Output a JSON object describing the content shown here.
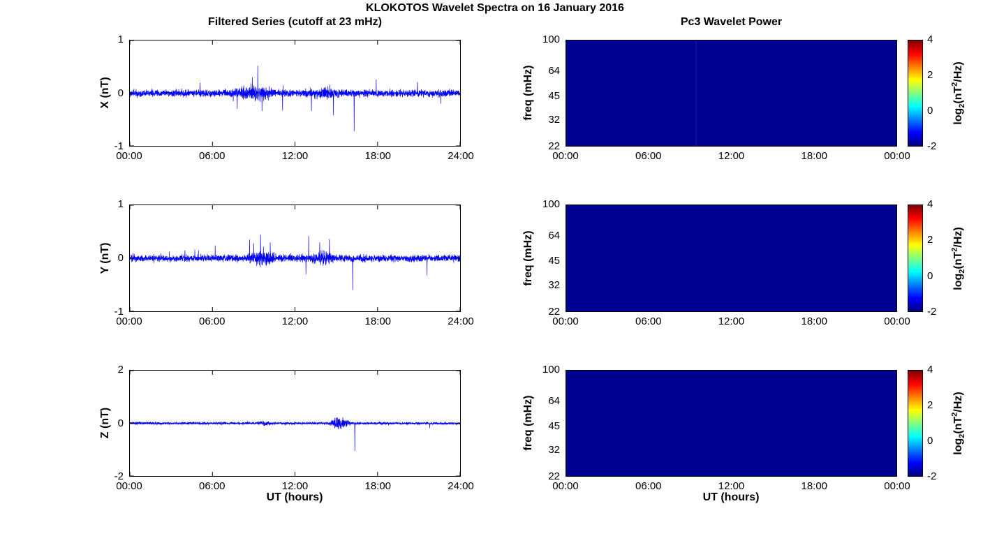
{
  "title": "KLOKOTOS Wavelet Spectra on 16 January 2016",
  "left": {
    "title": "Filtered Series (cutoff at 23 mHz)",
    "xlabel": "UT (hours)",
    "xticks": [
      "00:00",
      "06:00",
      "12:00",
      "18:00",
      "24:00"
    ],
    "panels": [
      {
        "ylabel": "X (nT)",
        "yticks": [
          "1",
          "0",
          "-1"
        ]
      },
      {
        "ylabel": "Y (nT)",
        "yticks": [
          "1",
          "0",
          "-1"
        ]
      },
      {
        "ylabel": "Z (nT)",
        "yticks": [
          "2",
          "0",
          "-2"
        ]
      }
    ]
  },
  "right": {
    "title": "Pc3 Wavelet Power",
    "xlabel": "UT (hours)",
    "xticks": [
      "00:00",
      "06:00",
      "12:00",
      "18:00",
      "00:00"
    ],
    "ylabel": "freq (mHz)",
    "yticks": [
      "100",
      "64",
      "45",
      "32",
      "22"
    ],
    "colorbar": {
      "ticks": [
        "4",
        "2",
        "0",
        "-2"
      ],
      "label": {
        "prefix": "log",
        "sub": "2",
        "mid": "(nT",
        "sup": "2",
        "suffix": "/Hz)"
      },
      "colormap": "jet",
      "range": [
        -2,
        4
      ]
    }
  },
  "colors": {
    "line": "#0000f5",
    "heat_fill": "#000091"
  },
  "chart_data": [
    {
      "type": "line",
      "name": "X filtered series",
      "ylabel": "X (nT)",
      "xlabel": "UT (hours)",
      "x_range_hours": [
        0,
        24
      ],
      "ylim": [
        -1,
        1
      ],
      "yticks": [
        1,
        0,
        -1
      ],
      "xticks": [
        "00:00",
        "06:00",
        "12:00",
        "18:00",
        "24:00"
      ],
      "description": "Band-pass filtered geomagnetic X component; noise band about ±0.05 nT with impulsive spikes",
      "noise": {
        "seed": 101,
        "base_amp": 0.045,
        "bursts": [
          {
            "t0": 6.5,
            "t1": 11.5,
            "amp": 0.1
          },
          {
            "t0": 12.0,
            "t1": 16.0,
            "amp": 0.075
          }
        ],
        "spikes": [
          {
            "t": 9.3,
            "v": 0.52
          },
          {
            "t": 8.9,
            "v": 0.3
          },
          {
            "t": 9.6,
            "v": -0.34
          },
          {
            "t": 7.8,
            "v": -0.3
          },
          {
            "t": 11.1,
            "v": -0.33
          },
          {
            "t": 13.2,
            "v": -0.34
          },
          {
            "t": 14.8,
            "v": -0.42
          },
          {
            "t": 16.3,
            "v": -0.72
          },
          {
            "t": 5.1,
            "v": 0.2
          },
          {
            "t": 17.9,
            "v": 0.26
          },
          {
            "t": 20.9,
            "v": 0.21
          },
          {
            "t": 22.6,
            "v": -0.2
          }
        ]
      }
    },
    {
      "type": "line",
      "name": "Y filtered series",
      "ylabel": "Y (nT)",
      "xlabel": "UT (hours)",
      "x_range_hours": [
        0,
        24
      ],
      "ylim": [
        -1,
        1
      ],
      "yticks": [
        1,
        0,
        -1
      ],
      "xticks": [
        "00:00",
        "06:00",
        "12:00",
        "18:00",
        "24:00"
      ],
      "description": "Band-pass filtered geomagnetic Y component; noise band about ±0.05 nT with impulsive spikes",
      "noise": {
        "seed": 202,
        "base_amp": 0.045,
        "bursts": [
          {
            "t0": 8.0,
            "t1": 11.2,
            "amp": 0.1
          },
          {
            "t0": 12.5,
            "t1": 15.5,
            "amp": 0.095
          }
        ],
        "spikes": [
          {
            "t": 9.5,
            "v": 0.45
          },
          {
            "t": 8.7,
            "v": 0.35
          },
          {
            "t": 10.2,
            "v": 0.3
          },
          {
            "t": 9.0,
            "v": 0.28
          },
          {
            "t": 13.0,
            "v": 0.42
          },
          {
            "t": 14.5,
            "v": 0.36
          },
          {
            "t": 13.8,
            "v": 0.3
          },
          {
            "t": 12.8,
            "v": -0.3
          },
          {
            "t": 16.2,
            "v": -0.6
          },
          {
            "t": 21.6,
            "v": -0.32
          },
          {
            "t": 6.2,
            "v": 0.24
          },
          {
            "t": 4.0,
            "v": 0.15
          }
        ]
      }
    },
    {
      "type": "line",
      "name": "Z filtered series",
      "ylabel": "Z (nT)",
      "xlabel": "UT (hours)",
      "x_range_hours": [
        0,
        24
      ],
      "ylim": [
        -2,
        2
      ],
      "yticks": [
        2,
        0,
        -2
      ],
      "xticks": [
        "00:00",
        "06:00",
        "12:00",
        "18:00",
        "24:00"
      ],
      "description": "Band-pass filtered geomagnetic Z component; thin noise band near 0 with burst near 15:00 and one large negative spike near 16:20",
      "noise": {
        "seed": 303,
        "base_amp": 0.035,
        "bursts": [
          {
            "t0": 14.3,
            "t1": 16.2,
            "amp": 0.16
          },
          {
            "t0": 9.0,
            "t1": 10.5,
            "amp": 0.06
          }
        ],
        "spikes": [
          {
            "t": 16.35,
            "v": -1.05
          },
          {
            "t": 15.1,
            "v": 0.22
          },
          {
            "t": 21.8,
            "v": -0.18
          }
        ]
      }
    },
    {
      "type": "heatmap",
      "name": "X Pc3 wavelet power",
      "xlabel": "UT (hours)",
      "ylabel": "freq (mHz)",
      "freq_ticks_mHz": [
        100,
        64,
        45,
        32,
        22
      ],
      "freq_scale": "log",
      "freq_range_mHz": [
        22,
        100
      ],
      "xticks": [
        "00:00",
        "06:00",
        "12:00",
        "18:00",
        "00:00"
      ],
      "uniform_value_log2_power": -2,
      "colorbar": {
        "range": [
          -2,
          4
        ],
        "ticks": [
          4,
          2,
          0,
          -2
        ],
        "label": "log2(nT^2/Hz)",
        "colormap": "jet"
      },
      "faint_line_t": 9.4
    },
    {
      "type": "heatmap",
      "name": "Y Pc3 wavelet power",
      "xlabel": "UT (hours)",
      "ylabel": "freq (mHz)",
      "freq_ticks_mHz": [
        100,
        64,
        45,
        32,
        22
      ],
      "freq_scale": "log",
      "freq_range_mHz": [
        22,
        100
      ],
      "xticks": [
        "00:00",
        "06:00",
        "12:00",
        "18:00",
        "00:00"
      ],
      "uniform_value_log2_power": -2,
      "colorbar": {
        "range": [
          -2,
          4
        ],
        "ticks": [
          4,
          2,
          0,
          -2
        ],
        "label": "log2(nT^2/Hz)",
        "colormap": "jet"
      }
    },
    {
      "type": "heatmap",
      "name": "Z Pc3 wavelet power",
      "xlabel": "UT (hours)",
      "ylabel": "freq (mHz)",
      "freq_ticks_mHz": [
        100,
        64,
        45,
        32,
        22
      ],
      "freq_scale": "log",
      "freq_range_mHz": [
        22,
        100
      ],
      "xticks": [
        "00:00",
        "06:00",
        "12:00",
        "18:00",
        "00:00"
      ],
      "uniform_value_log2_power": -2,
      "colorbar": {
        "range": [
          -2,
          4
        ],
        "ticks": [
          4,
          2,
          0,
          -2
        ],
        "label": "log2(nT^2/Hz)",
        "colormap": "jet"
      }
    }
  ]
}
